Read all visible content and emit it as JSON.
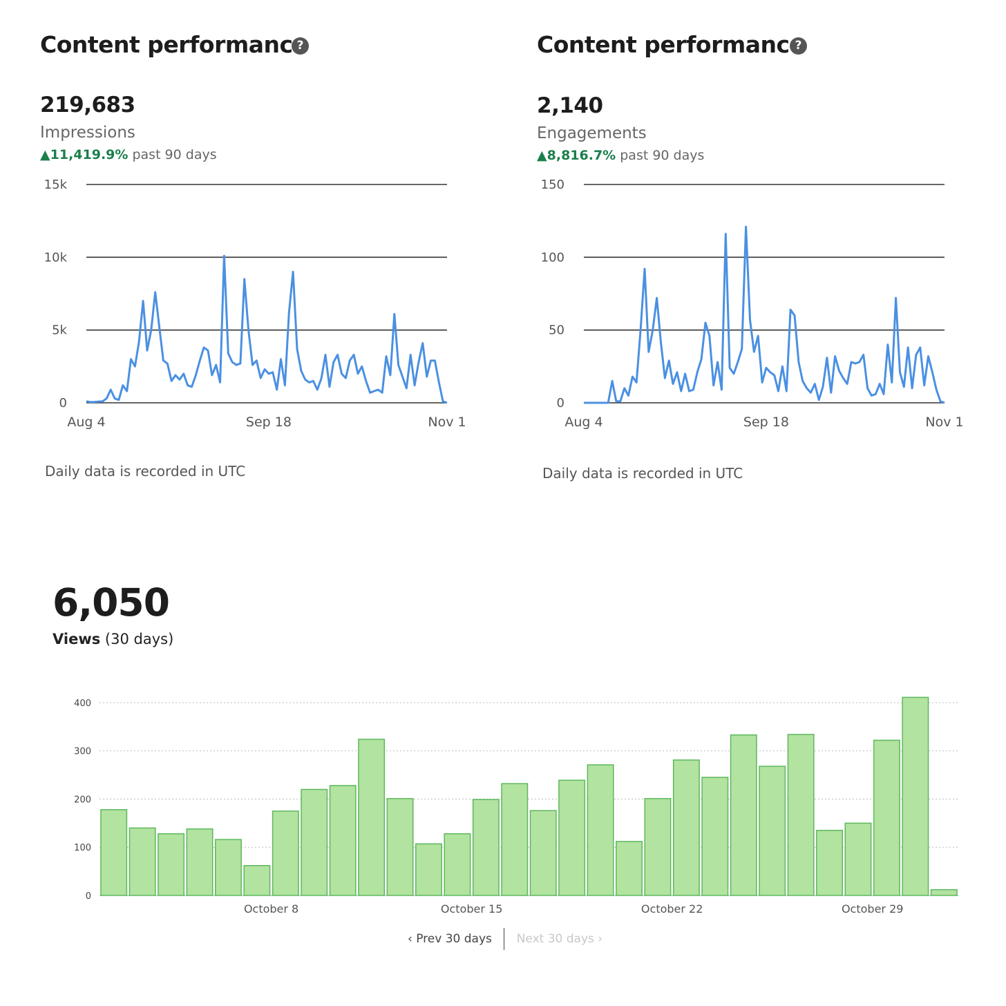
{
  "panels": [
    {
      "title": "Content performance",
      "help_icon": "question-circle-icon",
      "total": "219,683",
      "metric": "Impressions",
      "delta_pct": "11,419.9%",
      "delta_period": "past 90 days",
      "note": "Daily data is recorded in UTC"
    },
    {
      "title": "Content performance",
      "help_icon": "question-circle-icon",
      "total": "2,140",
      "metric": "Engagements",
      "delta_pct": "8,816.7%",
      "delta_period": "past 90 days",
      "note": "Daily data is recorded in UTC"
    }
  ],
  "views": {
    "total": "6,050",
    "label_bold": "Views",
    "label_rest": "(30 days)",
    "prev_label": "Prev 30 days",
    "next_label": "Next 30 days"
  },
  "colors": {
    "line": "#4a90e2",
    "bar_fill": "#b2e3a0",
    "bar_stroke": "#5cb85c",
    "up": "#1b7f4b"
  },
  "chart_data": [
    {
      "type": "line",
      "ylim": [
        0,
        15000
      ],
      "yticks": [
        0,
        5000,
        10000,
        15000
      ],
      "ytick_labels": [
        "0",
        "5k",
        "10k",
        "15k"
      ],
      "xtick_labels": [
        "Aug 4",
        "Sep 18",
        "Nov 1"
      ],
      "xtick_index": [
        0,
        45,
        89
      ],
      "series": [
        {
          "values": [
            100,
            50,
            60,
            80,
            100,
            300,
            900,
            300,
            200,
            1200,
            800,
            3000,
            2500,
            4200,
            7000,
            3600,
            5000,
            7600,
            5200,
            2900,
            2700,
            1500,
            1900,
            1600,
            2000,
            1200,
            1100,
            1900,
            2900,
            3800,
            3600,
            1900,
            2600,
            1400,
            10100,
            3400,
            2800,
            2600,
            2700,
            8500,
            5000,
            2600,
            2900,
            1700,
            2300,
            2000,
            2100,
            900,
            3000,
            1200,
            6200,
            9000,
            3700,
            2200,
            1600,
            1400,
            1500,
            900,
            1700,
            3300,
            1100,
            2800,
            3300,
            2000,
            1700,
            2900,
            3300,
            2000,
            2500,
            1500,
            700,
            800,
            900,
            700,
            3200,
            1900,
            6100,
            2600,
            1800,
            1000,
            3300,
            1200,
            2800,
            4100,
            1800,
            2900,
            2900,
            1400,
            100,
            0
          ]
        }
      ]
    },
    {
      "type": "line",
      "ylim": [
        0,
        150
      ],
      "yticks": [
        0,
        50,
        100,
        150
      ],
      "ytick_labels": [
        "0",
        "50",
        "100",
        "150"
      ],
      "xtick_labels": [
        "Aug 4",
        "Sep 18",
        "Nov 1"
      ],
      "xtick_index": [
        0,
        45,
        89
      ],
      "series": [
        {
          "values": [
            0,
            0,
            0,
            0,
            0,
            0,
            0,
            15,
            1,
            1,
            10,
            5,
            18,
            14,
            50,
            92,
            35,
            50,
            72,
            42,
            17,
            29,
            13,
            21,
            8,
            20,
            8,
            9,
            21,
            30,
            55,
            46,
            12,
            28,
            9,
            116,
            24,
            20,
            28,
            37,
            121,
            57,
            35,
            46,
            14,
            24,
            21,
            19,
            8,
            25,
            8,
            64,
            60,
            28,
            15,
            10,
            7,
            13,
            2,
            11,
            31,
            7,
            32,
            22,
            17,
            13,
            28,
            27,
            28,
            33,
            10,
            5,
            6,
            13,
            6,
            40,
            14,
            72,
            21,
            11,
            38,
            10,
            33,
            38,
            12,
            32,
            21,
            9,
            1,
            0
          ]
        }
      ]
    },
    {
      "type": "bar",
      "ylim": [
        0,
        410
      ],
      "yticks": [
        0,
        100,
        200,
        300,
        400
      ],
      "xtick_labels": [
        "October 8",
        "October 15",
        "October 22",
        "October 29"
      ],
      "xtick_index": [
        5.5,
        12.5,
        19.5,
        26.5
      ],
      "values": [
        178,
        140,
        128,
        138,
        116,
        62,
        175,
        220,
        228,
        324,
        201,
        107,
        128,
        199,
        232,
        176,
        239,
        271,
        112,
        201,
        281,
        245,
        333,
        268,
        334,
        135,
        150,
        322,
        411,
        12
      ]
    }
  ]
}
